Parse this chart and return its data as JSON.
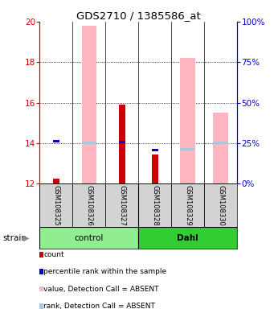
{
  "title": "GDS2710 / 1385586_at",
  "samples": [
    "GSM108325",
    "GSM108326",
    "GSM108327",
    "GSM108328",
    "GSM108329",
    "GSM108330"
  ],
  "ylim_left": [
    12,
    20
  ],
  "ylim_right": [
    0,
    100
  ],
  "yticks_left": [
    12,
    14,
    16,
    18,
    20
  ],
  "yticks_right": [
    0,
    25,
    50,
    75,
    100
  ],
  "ytick_labels_right": [
    "0%",
    "25%",
    "50%",
    "75%",
    "100%"
  ],
  "count_values": [
    12.25,
    null,
    15.9,
    13.45,
    null,
    null
  ],
  "count_bottom": [
    12,
    null,
    12,
    12,
    null,
    null
  ],
  "rank_values": [
    14.1,
    null,
    14.05,
    13.65,
    null,
    null
  ],
  "pink_value_top": [
    null,
    19.8,
    null,
    null,
    18.2,
    15.5
  ],
  "pink_value_bottom": [
    null,
    12,
    null,
    null,
    12,
    12
  ],
  "blue_rank_value": [
    null,
    14.02,
    null,
    null,
    13.7,
    14.02
  ],
  "colors": {
    "count": "#CC0000",
    "rank": "#0000CC",
    "pink_value": "#FFB6C1",
    "blue_rank": "#B0C4DE",
    "axis_left": "#CC0000",
    "axis_right": "#0000CC",
    "sample_box": "#D3D3D3",
    "control_bg": "#90EE90",
    "dahl_bg": "#32CD32"
  },
  "legend_items": [
    {
      "color": "#CC0000",
      "label": "count"
    },
    {
      "color": "#0000CC",
      "label": "percentile rank within the sample"
    },
    {
      "color": "#FFB6C1",
      "label": "value, Detection Call = ABSENT"
    },
    {
      "color": "#B0C4DE",
      "label": "rank, Detection Call = ABSENT"
    }
  ]
}
